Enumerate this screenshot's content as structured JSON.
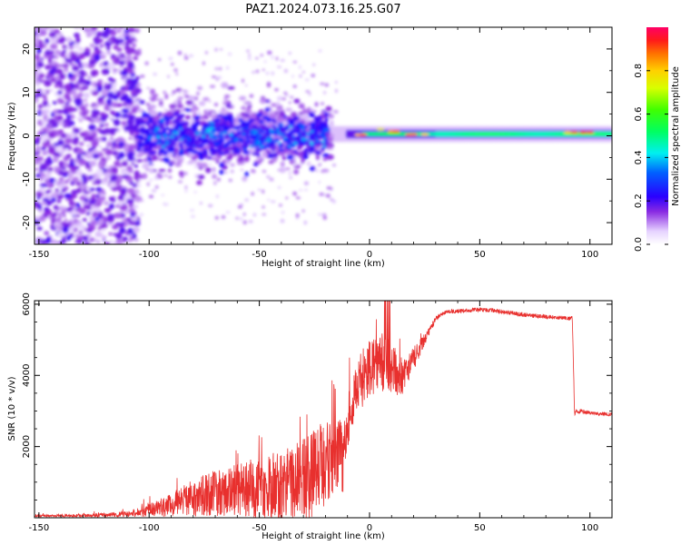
{
  "figure": {
    "title": "PAZ1.2024.073.16.25.G07"
  },
  "chart_data": [
    {
      "type": "heatmap",
      "xlabel": "Height of straight line (km)",
      "ylabel": "Frequency (Hz)",
      "xlim": [
        -152,
        110
      ],
      "ylim": [
        -25,
        25
      ],
      "x_ticks": [
        -150,
        -100,
        -50,
        0,
        50,
        100
      ],
      "y_ticks": [
        -20,
        -10,
        0,
        10,
        20
      ],
      "colorbar": {
        "label": "Normalized spectral amplitude",
        "range": [
          0,
          1
        ],
        "ticks": [
          0.0,
          0.2,
          0.4,
          0.6,
          0.8
        ]
      },
      "regions": [
        {
          "x": [
            -152,
            -105
          ],
          "spread_hz": 25,
          "amplitude": "low, scattered"
        },
        {
          "x": [
            -105,
            -20
          ],
          "spread_hz": 8,
          "amplitude": "low to medium, clustered near 0 Hz"
        },
        {
          "x": [
            -20,
            5
          ],
          "spread_hz": 2,
          "amplitude": "medium to high near 0 Hz"
        },
        {
          "x": [
            5,
            110
          ],
          "spread_hz": 1,
          "amplitude": "high, narrow line at ~0.5 Hz"
        }
      ]
    },
    {
      "type": "line",
      "xlabel": "Height of straight line (km)",
      "ylabel": "SNR (10 * v/v)",
      "xlim": [
        -152,
        110
      ],
      "ylim": [
        0,
        6100
      ],
      "x_ticks": [
        -150,
        -100,
        -50,
        0,
        50,
        100
      ],
      "y_ticks": [
        2000,
        4000,
        6000
      ],
      "color": "#e8302e",
      "envelope": {
        "x": [
          -152,
          -120,
          -105,
          -100,
          -90,
          -80,
          -70,
          -60,
          -50,
          -40,
          -30,
          -25,
          -20,
          -15,
          -12,
          -10,
          -5,
          0,
          5,
          10,
          15,
          20,
          25,
          30,
          35,
          40,
          50,
          60,
          70,
          80,
          90,
          92,
          93,
          95,
          100,
          110
        ],
        "base": [
          40,
          60,
          90,
          150,
          250,
          400,
          500,
          550,
          500,
          600,
          700,
          900,
          1200,
          1500,
          1400,
          2500,
          3500,
          4000,
          4200,
          3900,
          3800,
          4300,
          5000,
          5600,
          5800,
          5800,
          5850,
          5800,
          5700,
          5650,
          5600,
          5600,
          2950,
          3000,
          2950,
          2900
        ],
        "amp": [
          40,
          80,
          150,
          300,
          500,
          800,
          1000,
          1200,
          1300,
          1500,
          1800,
          2000,
          1900,
          1700,
          1500,
          1100,
          1200,
          1300,
          1400,
          1200,
          900,
          500,
          300,
          150,
          120,
          120,
          120,
          120,
          120,
          120,
          120,
          120,
          150,
          120,
          120,
          100
        ]
      }
    }
  ]
}
